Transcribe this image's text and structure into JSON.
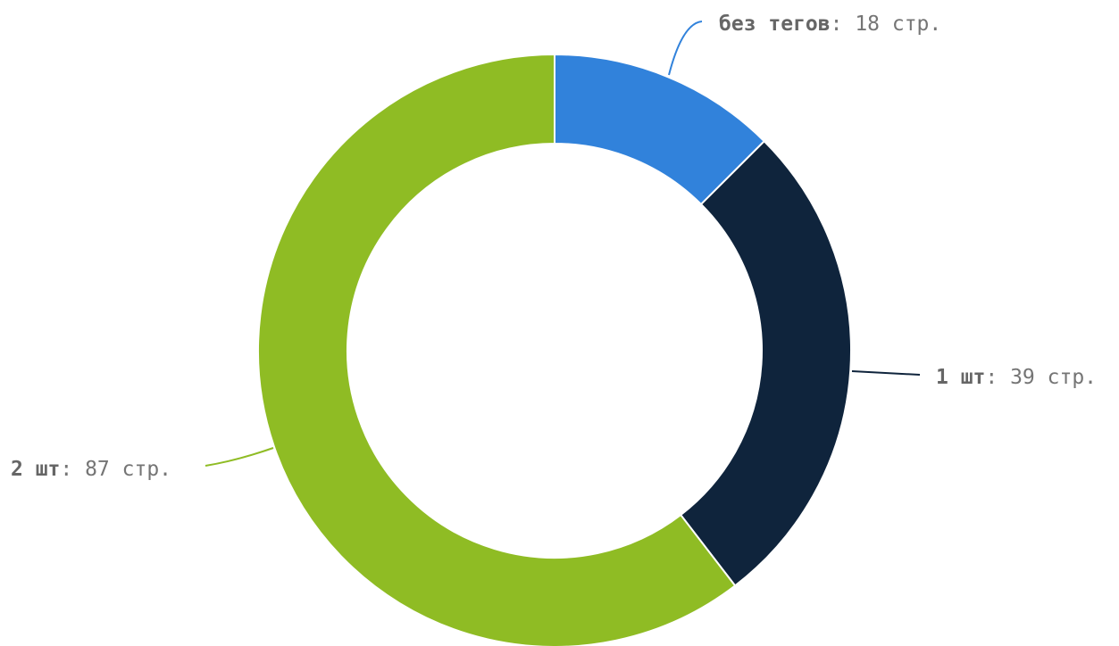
{
  "chart_data": {
    "type": "pie",
    "donut": true,
    "title": "",
    "unit_suffix": "стр.",
    "slices": [
      {
        "name": "без тегов",
        "value": 18,
        "color": "#3182db"
      },
      {
        "name": "1 шт",
        "value": 39,
        "color": "#0f243c"
      },
      {
        "name": "2 шт",
        "value": 87,
        "color": "#8fbc24"
      }
    ],
    "legend": "none",
    "start_angle": "top",
    "direction": "clockwise"
  }
}
